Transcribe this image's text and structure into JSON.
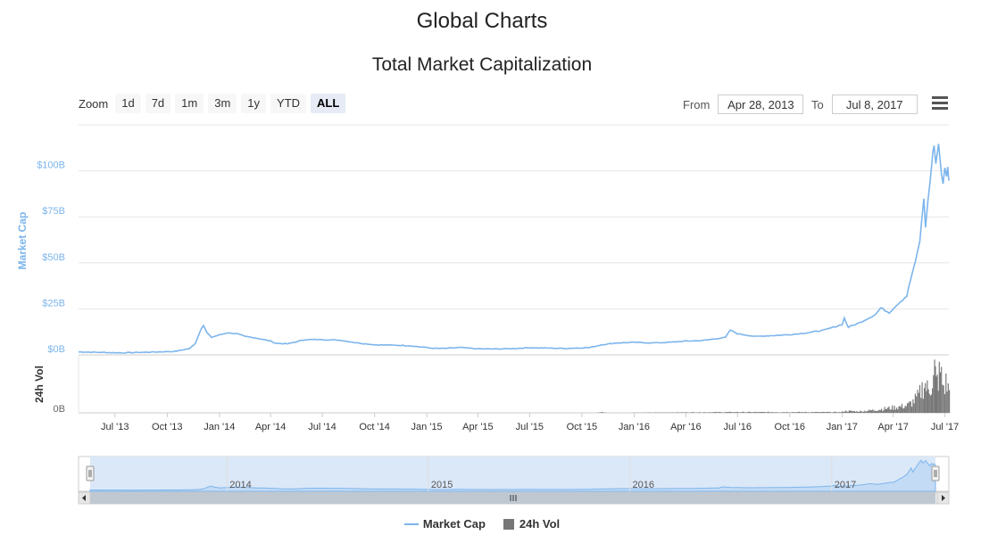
{
  "page": {
    "title": "Global Charts"
  },
  "chart": {
    "title": "Total Market Capitalization",
    "zoom": {
      "label": "Zoom",
      "buttons": [
        "1d",
        "7d",
        "1m",
        "3m",
        "1y",
        "YTD",
        "ALL"
      ],
      "active": "ALL"
    },
    "range": {
      "from_label": "From",
      "from_value": "Apr 28, 2013",
      "to_label": "To",
      "to_value": "Jul 8, 2017"
    }
  },
  "legend": {
    "market_cap": "Market Cap",
    "volume": "24h Vol"
  },
  "colors": {
    "market_cap": "#7cb5ec",
    "volume": "#777777",
    "navigator_fill": "#dbe8f8"
  },
  "chart_data": {
    "type": "line",
    "title": "Total Market Capitalization",
    "x_range": [
      "2013-04-28",
      "2017-07-08"
    ],
    "x_ticks": [
      "Jul '13",
      "Oct '13",
      "Jan '14",
      "Apr '14",
      "Jul '14",
      "Oct '14",
      "Jan '15",
      "Apr '15",
      "Jul '15",
      "Oct '15",
      "Jan '16",
      "Apr '16",
      "Jul '16",
      "Oct '16",
      "Jan '17",
      "Apr '17",
      "Jul '17"
    ],
    "x_tick_dates": [
      "2013-07-01",
      "2013-10-01",
      "2014-01-01",
      "2014-04-01",
      "2014-07-01",
      "2014-10-01",
      "2015-01-01",
      "2015-04-01",
      "2015-07-01",
      "2015-10-01",
      "2016-01-01",
      "2016-04-01",
      "2016-07-01",
      "2016-10-01",
      "2017-01-01",
      "2017-04-01",
      "2017-07-01"
    ],
    "market_cap_axis": {
      "label": "Market Cap",
      "ticks": [
        "$0B",
        "$25B",
        "$50B",
        "$75B",
        "$100B"
      ],
      "tick_values": [
        0,
        25,
        50,
        75,
        100
      ],
      "ylim": [
        0,
        125
      ]
    },
    "volume_axis": {
      "label": "24h Vol",
      "ticks": [
        "0B"
      ]
    },
    "navigator_ticks": [
      "2014",
      "2015",
      "2016",
      "2017"
    ],
    "navigator_tick_dates": [
      "2014-01-01",
      "2015-01-01",
      "2016-01-01",
      "2017-01-01"
    ],
    "series": [
      {
        "name": "Market Cap",
        "unit": "$B",
        "points": [
          [
            "2013-04-28",
            1.6
          ],
          [
            "2013-06-01",
            1.4
          ],
          [
            "2013-07-15",
            1.1
          ],
          [
            "2013-09-01",
            1.5
          ],
          [
            "2013-10-15",
            1.9
          ],
          [
            "2013-11-10",
            3.5
          ],
          [
            "2013-11-20",
            6.5
          ],
          [
            "2013-11-30",
            14.5
          ],
          [
            "2013-12-04",
            16.0
          ],
          [
            "2013-12-10",
            12.0
          ],
          [
            "2013-12-18",
            9.5
          ],
          [
            "2013-12-28",
            10.5
          ],
          [
            "2014-01-15",
            12.0
          ],
          [
            "2014-02-01",
            11.5
          ],
          [
            "2014-02-15",
            10.0
          ],
          [
            "2014-03-01",
            9.5
          ],
          [
            "2014-04-01",
            7.5
          ],
          [
            "2014-04-10",
            6.3
          ],
          [
            "2014-05-01",
            6.0
          ],
          [
            "2014-06-01",
            8.3
          ],
          [
            "2014-07-01",
            8.3
          ],
          [
            "2014-08-01",
            8.0
          ],
          [
            "2014-09-01",
            6.5
          ],
          [
            "2014-10-01",
            5.5
          ],
          [
            "2014-11-01",
            5.3
          ],
          [
            "2014-12-01",
            5.0
          ],
          [
            "2015-01-15",
            3.5
          ],
          [
            "2015-02-01",
            3.5
          ],
          [
            "2015-03-01",
            4.0
          ],
          [
            "2015-04-01",
            3.3
          ],
          [
            "2015-05-01",
            3.2
          ],
          [
            "2015-06-01",
            3.4
          ],
          [
            "2015-07-01",
            3.9
          ],
          [
            "2015-08-01",
            3.7
          ],
          [
            "2015-09-01",
            3.5
          ],
          [
            "2015-10-15",
            4.0
          ],
          [
            "2015-11-05",
            5.5
          ],
          [
            "2015-12-01",
            6.5
          ],
          [
            "2016-01-01",
            6.8
          ],
          [
            "2016-02-01",
            6.5
          ],
          [
            "2016-03-01",
            6.8
          ],
          [
            "2016-04-01",
            7.5
          ],
          [
            "2016-05-01",
            7.8
          ],
          [
            "2016-06-10",
            9.5
          ],
          [
            "2016-06-18",
            13.5
          ],
          [
            "2016-07-01",
            11.5
          ],
          [
            "2016-08-01",
            10.0
          ],
          [
            "2016-09-01",
            10.5
          ],
          [
            "2016-10-01",
            11.0
          ],
          [
            "2016-11-01",
            12.0
          ],
          [
            "2016-12-01",
            13.5
          ],
          [
            "2017-01-01",
            16.5
          ],
          [
            "2017-01-05",
            20.0
          ],
          [
            "2017-01-12",
            15.0
          ],
          [
            "2017-02-01",
            17.5
          ],
          [
            "2017-03-01",
            22.0
          ],
          [
            "2017-03-10",
            25.5
          ],
          [
            "2017-03-25",
            23.0
          ],
          [
            "2017-04-10",
            28.0
          ],
          [
            "2017-04-25",
            32.0
          ],
          [
            "2017-05-05",
            45.0
          ],
          [
            "2017-05-10",
            50.0
          ],
          [
            "2017-05-18",
            62.0
          ],
          [
            "2017-05-25",
            85.0
          ],
          [
            "2017-05-28",
            70.0
          ],
          [
            "2017-06-05",
            95.0
          ],
          [
            "2017-06-10",
            110.0
          ],
          [
            "2017-06-12",
            114.0
          ],
          [
            "2017-06-15",
            104.0
          ],
          [
            "2017-06-20",
            113.0
          ],
          [
            "2017-06-25",
            100.0
          ],
          [
            "2017-06-28",
            93.0
          ],
          [
            "2017-07-01",
            102.0
          ],
          [
            "2017-07-04",
            98.0
          ],
          [
            "2017-07-06",
            101.0
          ],
          [
            "2017-07-08",
            94.0
          ]
        ]
      },
      {
        "name": "24h Vol",
        "unit": "$B",
        "ylim": [
          0,
          7
        ],
        "points": [
          [
            "2013-04-28",
            0.0
          ],
          [
            "2015-10-25",
            0.0
          ],
          [
            "2015-11-05",
            0.1
          ],
          [
            "2015-11-15",
            0.0
          ],
          [
            "2016-06-15",
            0.1
          ],
          [
            "2016-07-01",
            0.1
          ],
          [
            "2016-12-30",
            0.1
          ],
          [
            "2017-01-05",
            0.25
          ],
          [
            "2017-02-01",
            0.2
          ],
          [
            "2017-03-01",
            0.4
          ],
          [
            "2017-03-20",
            0.6
          ],
          [
            "2017-04-10",
            0.8
          ],
          [
            "2017-04-25",
            1.0
          ],
          [
            "2017-05-05",
            1.5
          ],
          [
            "2017-05-15",
            2.3
          ],
          [
            "2017-05-25",
            4.0
          ],
          [
            "2017-06-01",
            3.0
          ],
          [
            "2017-06-10",
            4.5
          ],
          [
            "2017-06-12",
            6.0
          ],
          [
            "2017-06-15",
            4.0
          ],
          [
            "2017-06-22",
            5.5
          ],
          [
            "2017-06-28",
            3.5
          ],
          [
            "2017-07-02",
            4.0
          ],
          [
            "2017-07-08",
            3.0
          ]
        ]
      }
    ],
    "legend_position": "bottom-center",
    "grid": true
  }
}
